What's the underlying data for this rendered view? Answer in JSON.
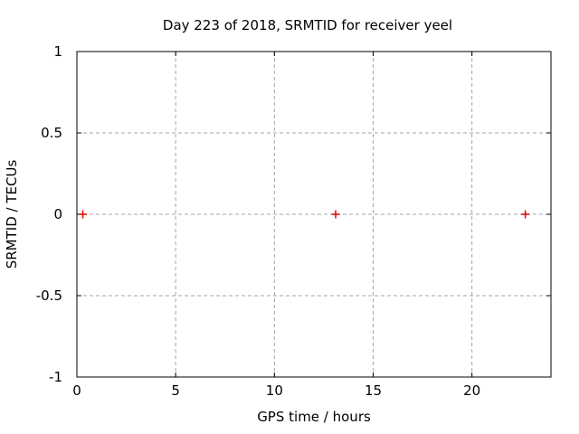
{
  "window": {
    "background": "#ffffff"
  },
  "chart_data": {
    "type": "scatter",
    "title": "Day 223 of 2018, SRMTID for receiver yeel",
    "xlabel": "GPS time / hours",
    "ylabel": "SRMTID / TECUs",
    "xlim": [
      0,
      24
    ],
    "ylim": [
      -1,
      1
    ],
    "xticks": [
      0,
      5,
      10,
      15,
      20
    ],
    "yticks": [
      -1,
      -0.5,
      0,
      0.5,
      1
    ],
    "grid": "dashed",
    "legend_position": "none",
    "series": [
      {
        "name": "SRMTID",
        "marker": "plus",
        "color": "#e60000",
        "points": [
          {
            "x": 0.3,
            "y": 0
          },
          {
            "x": 13.1,
            "y": 0
          },
          {
            "x": 22.7,
            "y": 0
          }
        ]
      }
    ],
    "colors": {
      "border": "#000000",
      "grid": "#a6a6a6",
      "tick": "#000000",
      "text": "#000000"
    }
  }
}
